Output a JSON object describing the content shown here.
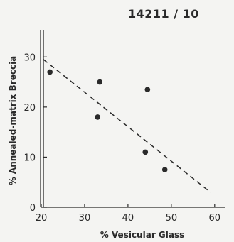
{
  "title": "14211 / 10",
  "chart_data": {
    "type": "scatter",
    "title": "14211 / 10",
    "xlabel": "% Vesicular Glass",
    "ylabel": "% Annealed-matrix Breccia",
    "xlim": [
      20,
      62
    ],
    "ylim": [
      0,
      35
    ],
    "xticks": [
      20,
      30,
      40,
      50,
      60
    ],
    "yticks": [
      0,
      10,
      20,
      30
    ],
    "grid": false,
    "points": [
      {
        "x": 22,
        "y": 27
      },
      {
        "x": 33,
        "y": 18
      },
      {
        "x": 33.5,
        "y": 25
      },
      {
        "x": 44,
        "y": 11
      },
      {
        "x": 44.5,
        "y": 23.5
      },
      {
        "x": 48.5,
        "y": 7.5
      }
    ],
    "trend_line": {
      "style": "dashed",
      "x": [
        20.5,
        59
      ],
      "y": [
        29.5,
        3
      ]
    },
    "colors": {
      "marks": "#2a2a2a",
      "background": "#f4f4f2"
    }
  }
}
